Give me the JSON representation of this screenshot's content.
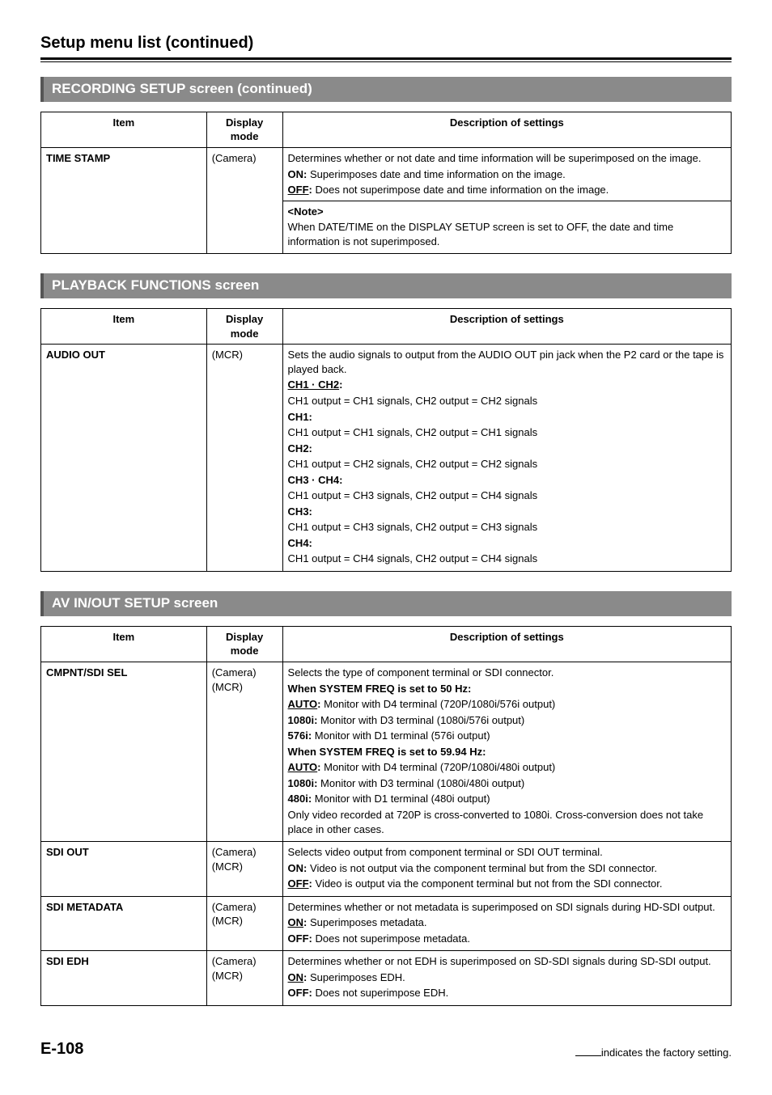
{
  "page": {
    "title": "Setup menu list (continued)",
    "number": "E-108",
    "factory_note": "indicates the factory setting."
  },
  "columns": {
    "item": "Item",
    "mode": "Display mode",
    "desc": "Description of settings"
  },
  "sections": [
    {
      "header": "RECORDING SETUP screen (continued)",
      "rows": [
        {
          "item": "TIME STAMP",
          "mode": "(Camera)",
          "desc": "<p>Determines whether or not date and time information will be superimposed on the image.</p><p><b>ON:</b> Superimposes date and time information on the image.</p><p><b><span class=\"u\">OFF</span>:</b> Does not superimpose date and time information on the image.</p><hr style=\"border:none;border-top:1px solid #000;margin:4px -6px;\"><p><b>&lt;Note&gt;</b></p><p>When DATE/TIME on the DISPLAY SETUP screen is set to OFF, the date and time information is not superimposed.</p>"
        }
      ]
    },
    {
      "header": "PLAYBACK FUNCTIONS screen",
      "rows": [
        {
          "item": "AUDIO OUT",
          "mode": "(MCR)",
          "desc": "<p>Sets the audio signals to output from the AUDIO OUT pin jack when the P2 card or the tape is played back.</p><p><b><span class=\"u\">CH1 · CH2</span>:</b></p><p>CH1 output = CH1 signals, CH2 output = CH2 signals</p><p><b>CH1:</b></p><p>CH1 output = CH1 signals, CH2 output = CH1 signals</p><p><b>CH2:</b></p><p>CH1 output = CH2 signals, CH2 output = CH2 signals</p><p><b>CH3 · CH4:</b></p><p>CH1 output = CH3 signals, CH2 output = CH4 signals</p><p><b>CH3:</b></p><p>CH1 output = CH3 signals, CH2 output = CH3 signals</p><p><b>CH4:</b></p><p>CH1 output = CH4 signals, CH2 output = CH4 signals</p>"
        }
      ]
    },
    {
      "header": "AV IN/OUT SETUP screen",
      "rows": [
        {
          "item": "CMPNT/SDI SEL",
          "mode": "(Camera)<br>(MCR)",
          "desc": "<p>Selects the type of component terminal or SDI connector.</p><p><b>When SYSTEM FREQ is set to 50 Hz:</b></p><p><b><span class=\"u\">AUTO</span>:</b> Monitor with D4 terminal (720P/1080i/576i output)</p><p><b>1080i:</b> Monitor with D3 terminal (1080i/576i output)</p><p><b>576i:</b> Monitor with D1 terminal (576i output)</p><p><b>When SYSTEM FREQ is set to 59.94 Hz:</b></p><p><b><span class=\"u\">AUTO</span>:</b> Monitor with D4 terminal (720P/1080i/480i output)</p><p><b>1080i:</b> Monitor with D3 terminal (1080i/480i output)</p><p><b>480i:</b> Monitor with D1 terminal (480i output)</p><p>Only video recorded at 720P is cross-converted to 1080i. Cross-conversion does not take place in other cases.</p>"
        },
        {
          "item": "SDI OUT",
          "mode": "(Camera)<br>(MCR)",
          "desc": "<p>Selects video output from component terminal or SDI OUT terminal.</p><p><b>ON:</b> Video is not output via the component terminal but from the SDI connector.</p><p><b><span class=\"u\">OFF</span>:</b> Video is output via the component terminal but not from the SDI connector.</p>"
        },
        {
          "item": "SDI METADATA",
          "mode": "(Camera)<br>(MCR)",
          "desc": "<p>Determines whether or not metadata is superimposed on SDI signals during HD-SDI output.</p><p><b><span class=\"u\">ON</span>:</b> Superimposes metadata.</p><p><b>OFF:</b> Does not superimpose metadata.</p>"
        },
        {
          "item": "SDI EDH",
          "mode": "(Camera)<br>(MCR)",
          "desc": "<p>Determines whether or not EDH is superimposed on SD-SDI signals during SD-SDI output.</p><p><b><span class=\"u\">ON</span>:</b> Superimposes EDH.</p><p><b>OFF:</b> Does not superimpose EDH.</p>"
        }
      ]
    }
  ]
}
